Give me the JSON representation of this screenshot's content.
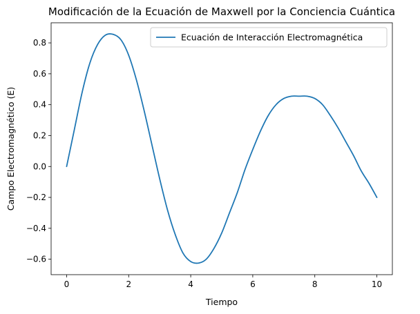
{
  "chart_data": {
    "type": "line",
    "title": "Modificación de la Ecuación de Maxwell por la Conciencia Cuántica",
    "xlabel": "Tiempo",
    "ylabel": "Campo Electromagnético (E)",
    "xlim": [
      -0.5,
      10.5
    ],
    "ylim": [
      -0.7,
      0.93
    ],
    "xticks": [
      0,
      2,
      4,
      6,
      8,
      10
    ],
    "xtick_labels": [
      "0",
      "2",
      "4",
      "6",
      "8",
      "10"
    ],
    "yticks": [
      -0.6,
      -0.4,
      -0.2,
      0.0,
      0.2,
      0.4,
      0.6,
      0.8
    ],
    "ytick_labels": [
      "−0.6",
      "−0.4",
      "−0.2",
      "0.0",
      "0.2",
      "0.4",
      "0.6",
      "0.8"
    ],
    "grid": false,
    "legend_position": "top-right",
    "series": [
      {
        "name": "Ecuación de Interacción Electromagnética",
        "color": "#1f77b4",
        "x": [
          0,
          0.25,
          0.5,
          0.75,
          1.0,
          1.25,
          1.5,
          1.75,
          2.0,
          2.25,
          2.5,
          2.75,
          3.0,
          3.25,
          3.5,
          3.75,
          4.0,
          4.25,
          4.5,
          4.75,
          5.0,
          5.25,
          5.5,
          5.75,
          6.0,
          6.25,
          6.5,
          6.75,
          7.0,
          7.25,
          7.5,
          7.75,
          8.0,
          8.25,
          8.5,
          8.75,
          9.0,
          9.25,
          9.5,
          9.75,
          10.0
        ],
        "y": [
          0.0,
          0.24,
          0.48,
          0.67,
          0.79,
          0.85,
          0.855,
          0.82,
          0.72,
          0.56,
          0.36,
          0.14,
          -0.08,
          -0.28,
          -0.44,
          -0.56,
          -0.615,
          -0.625,
          -0.6,
          -0.53,
          -0.43,
          -0.3,
          -0.17,
          -0.02,
          0.11,
          0.23,
          0.33,
          0.4,
          0.44,
          0.455,
          0.455,
          0.455,
          0.44,
          0.4,
          0.33,
          0.25,
          0.16,
          0.07,
          -0.03,
          -0.11,
          -0.2
        ]
      }
    ]
  }
}
